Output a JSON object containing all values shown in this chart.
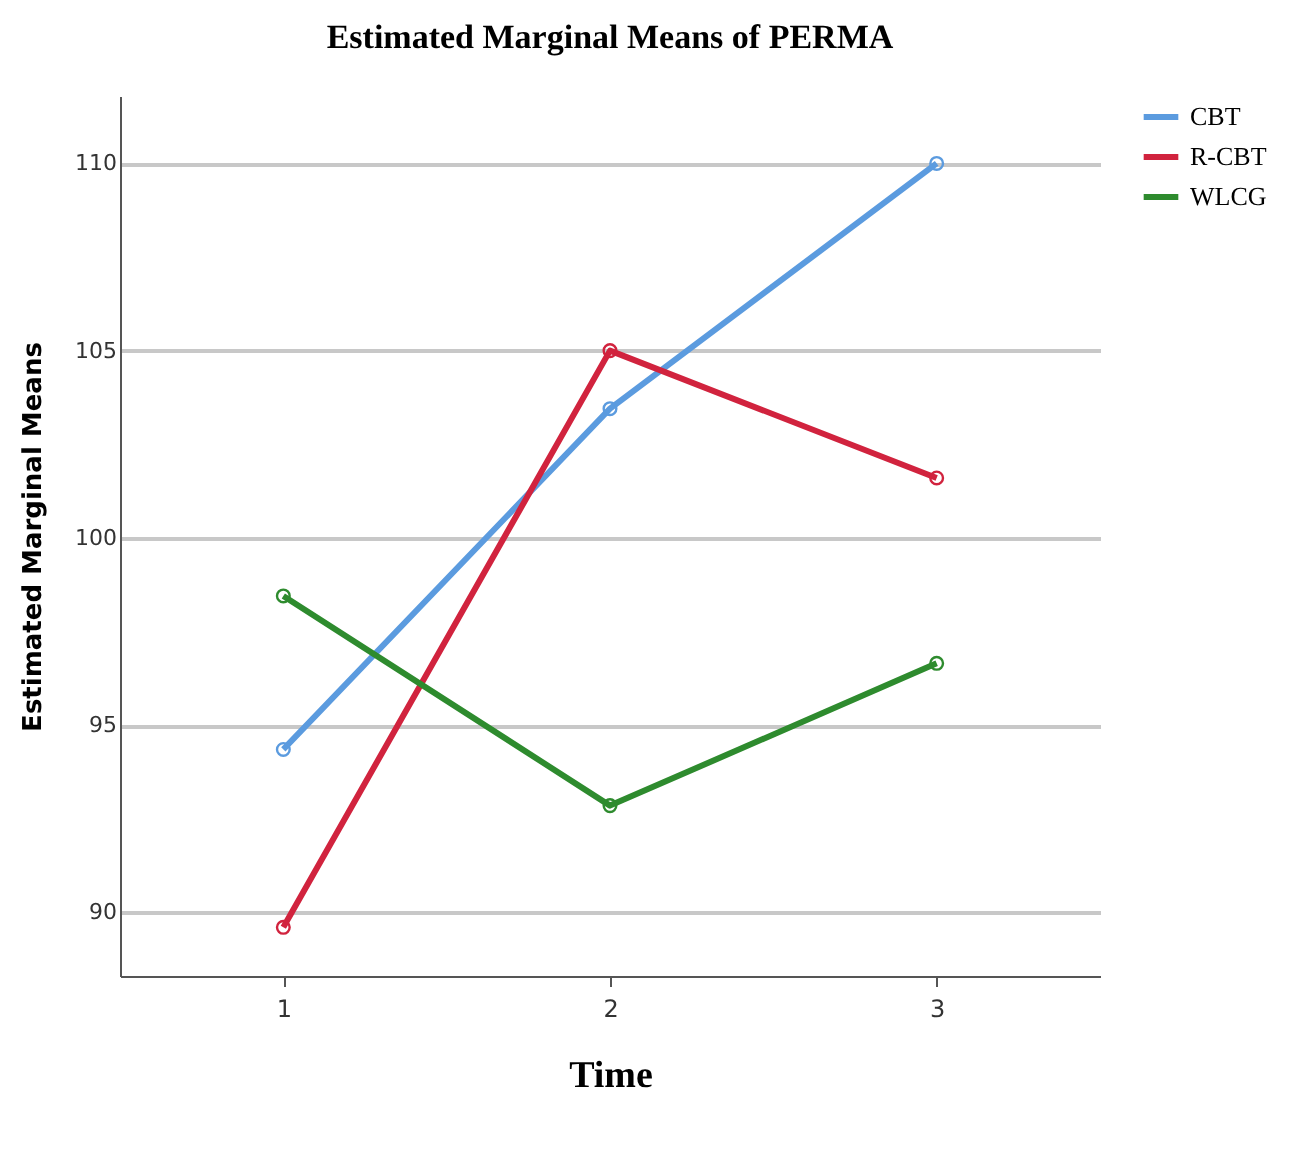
{
  "chart_data": {
    "type": "line",
    "title": "Estimated Marginal Means of PERMA",
    "xlabel": "Time",
    "ylabel": "Estimated Marginal Means",
    "categories": [
      "1",
      "2",
      "3"
    ],
    "series": [
      {
        "name": "CBT",
        "color": "#5b9bdf",
        "values": [
          94.35,
          103.45,
          110
        ]
      },
      {
        "name": "R-CBT",
        "color": "#d1233e",
        "values": [
          89.6,
          105,
          101.6
        ]
      },
      {
        "name": "WLCG",
        "color": "#2e8b2e",
        "values": [
          98.45,
          92.85,
          96.65
        ]
      }
    ],
    "ylim": [
      88.3,
      111.8
    ],
    "yticks": [
      90,
      95,
      100,
      105,
      110
    ],
    "grid": "y",
    "legend": "top right",
    "marker": "circle",
    "line_style": "solid"
  }
}
